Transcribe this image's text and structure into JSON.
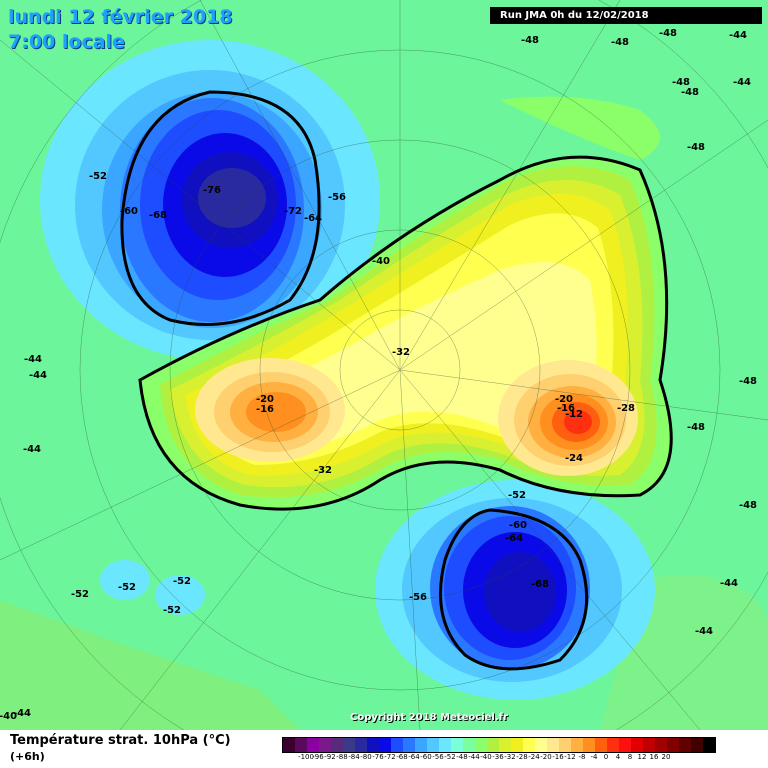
{
  "header": {
    "date_line": "lundi 12 février 2018",
    "time_line": "7:00 locale",
    "run_info": "Run JMA 0h du 12/02/2018"
  },
  "footer": {
    "copyright": "Copyright 2018 Meteociel.fr",
    "legend_title": "Température strat. 10hPa (°C)",
    "legend_sub": "(+6h)"
  },
  "scale": {
    "colors": [
      "#3a0030",
      "#5a0a5a",
      "#8a00a0",
      "#7a1a8a",
      "#5a2a7a",
      "#3a3a8a",
      "#2a2aa0",
      "#1010c0",
      "#0a0ae8",
      "#1e4cff",
      "#2a78ff",
      "#3aa6ff",
      "#52c8ff",
      "#6ae6ff",
      "#7affd8",
      "#7affa0",
      "#8aff6a",
      "#b0f040",
      "#d8f030",
      "#f0f020",
      "#ffff50",
      "#ffff90",
      "#ffe890",
      "#ffd070",
      "#ffb040",
      "#ff9020",
      "#ff6010",
      "#ff3010",
      "#ff1010",
      "#e00000",
      "#c00000",
      "#a00000",
      "#800000",
      "#600000",
      "#400000",
      "#000000"
    ],
    "labels": [
      "-100",
      "-96",
      "-92",
      "-88",
      "-84",
      "-80",
      "-76",
      "-72",
      "-68",
      "-64",
      "-60",
      "-56",
      "-52",
      "-48",
      "-44",
      "-40",
      "-36",
      "-32",
      "-28",
      "-24",
      "-20",
      "-16",
      "-12",
      "-8",
      "-4",
      "0",
      "4",
      "8",
      "12",
      "16",
      "20"
    ]
  },
  "contour_labels": [
    {
      "text": "-48"
    },
    {
      "text": "-48"
    },
    {
      "text": "-48"
    },
    {
      "text": "-44"
    },
    {
      "text": "-48"
    },
    {
      "text": "-48"
    },
    {
      "text": "-44"
    },
    {
      "text": "-48"
    },
    {
      "text": "-52"
    },
    {
      "text": "-60"
    },
    {
      "text": "-68"
    },
    {
      "text": "-76"
    },
    {
      "text": "-72"
    },
    {
      "text": "-64"
    },
    {
      "text": "-56"
    },
    {
      "text": "-40"
    },
    {
      "text": "-32"
    },
    {
      "text": "-44"
    },
    {
      "text": "-44"
    },
    {
      "text": "-44"
    },
    {
      "text": "-20"
    },
    {
      "text": "-16"
    },
    {
      "text": "-32"
    },
    {
      "text": "-20"
    },
    {
      "text": "-16"
    },
    {
      "text": "-12"
    },
    {
      "text": "-28"
    },
    {
      "text": "-24"
    },
    {
      "text": "-48"
    },
    {
      "text": "-48"
    },
    {
      "text": "-48"
    },
    {
      "text": "-52"
    },
    {
      "text": "-60"
    },
    {
      "text": "-64"
    },
    {
      "text": "-68"
    },
    {
      "text": "-56"
    },
    {
      "text": "-52"
    },
    {
      "text": "-52"
    },
    {
      "text": "-52"
    },
    {
      "text": "-52"
    },
    {
      "text": "-44"
    },
    {
      "text": "-44"
    },
    {
      "text": "-44"
    },
    {
      "text": "-40"
    }
  ]
}
